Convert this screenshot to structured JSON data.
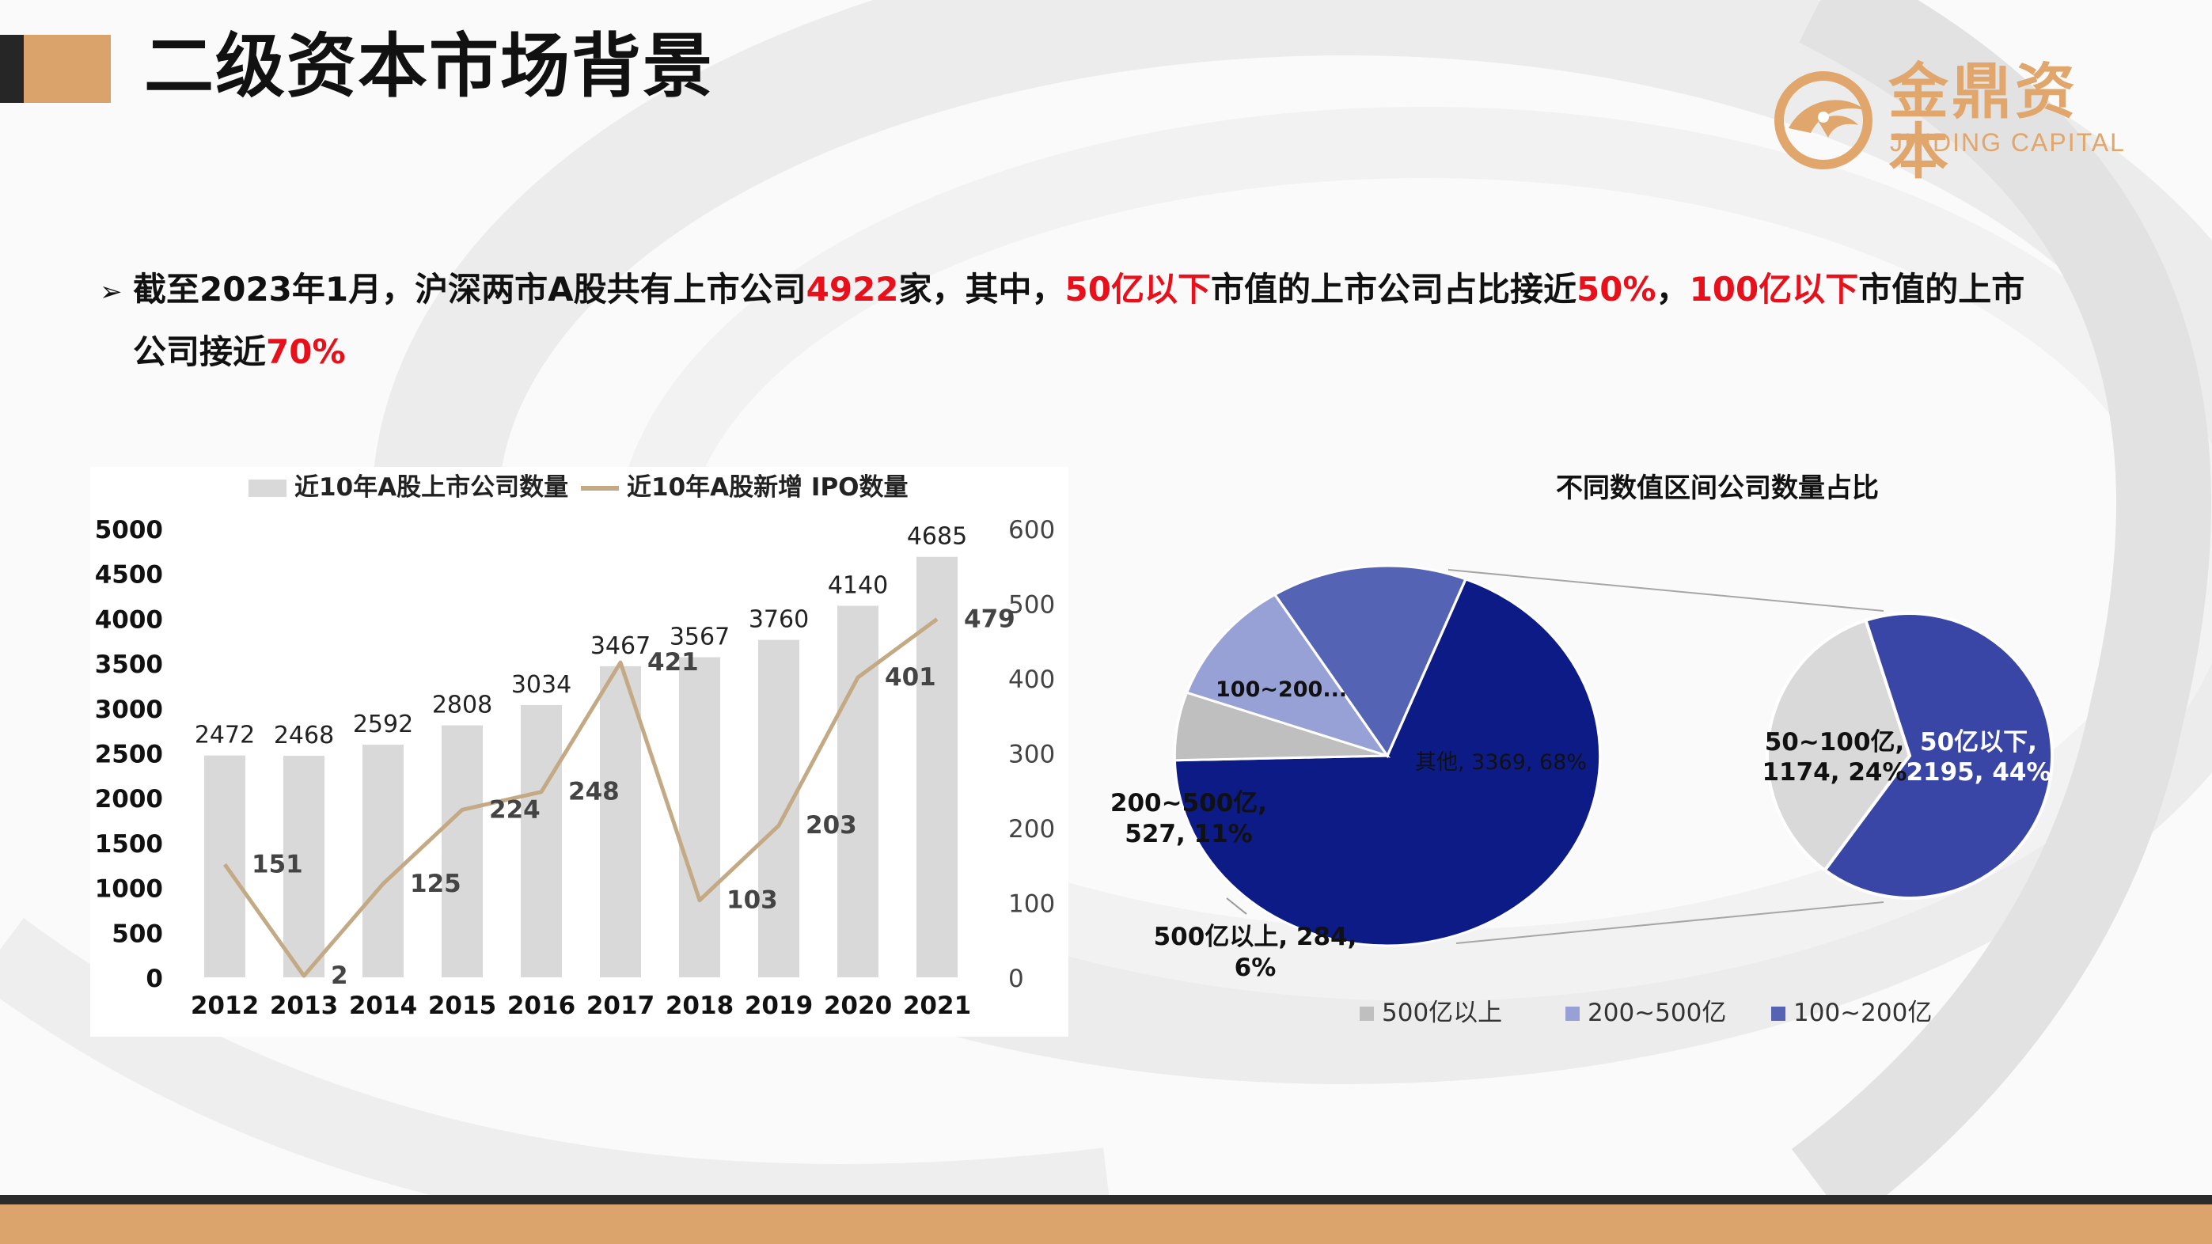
{
  "page_title": "二级资本市场背景",
  "logo": {
    "cn": "金鼎资本",
    "en": "JINDING CAPITAL"
  },
  "bullet": {
    "p1": "截至2023年1月，沪深两市A股共有上市公司",
    "n1": "4922",
    "p2": "家，其中，",
    "n2": "50亿以下",
    "p3": "市值的上市公司占比接近",
    "n3": "50%",
    "p4": "，",
    "n4": "100亿以下",
    "p5": "市值的上市",
    "p6": "公司接近",
    "n5": "70%"
  },
  "colors": {
    "accent": "#d9a36b",
    "highlight_red": "#e8101a",
    "bar_gray": "#d9d9d9",
    "ipo_line": "#c4a985",
    "pie_dark_blue": "#0d1b87",
    "pie_mid_blue": "#5563b5",
    "pie_light_blue": "#97a1d5",
    "pie_gray": "#bfbfbf",
    "pie_light_gray": "#d9d9d9",
    "pie_blue2": "#3946a6"
  },
  "chart_data": [
    {
      "type": "bar+line",
      "legend": [
        "近10年A股上市公司数量",
        "近10年A股新增 IPO数量"
      ],
      "categories": [
        "2012",
        "2013",
        "2014",
        "2015",
        "2016",
        "2017",
        "2018",
        "2019",
        "2020",
        "2021"
      ],
      "series": [
        {
          "name": "近10年A股上市公司数量",
          "type": "bar",
          "axis": "left",
          "values": [
            2472,
            2468,
            2592,
            2808,
            3034,
            3467,
            3567,
            3760,
            4140,
            4685
          ]
        },
        {
          "name": "近10年A股新增 IPO数量",
          "type": "line",
          "axis": "right",
          "values": [
            151,
            2,
            125,
            224,
            248,
            421,
            103,
            203,
            401,
            479
          ]
        }
      ],
      "y_left": {
        "min": 0,
        "max": 5000,
        "step": 500,
        "ticks": [
          "0",
          "500",
          "1000",
          "1500",
          "2000",
          "2500",
          "3000",
          "3500",
          "4000",
          "4500",
          "5000"
        ]
      },
      "y_right": {
        "min": 0,
        "max": 600,
        "step": 100,
        "ticks": [
          "0",
          "100",
          "200",
          "300",
          "400",
          "500",
          "600"
        ]
      },
      "grid": false,
      "legend_position": "top"
    },
    {
      "type": "pie-of-pie",
      "title": "不同数值区间公司数量占比",
      "main_pie": [
        {
          "label": "其他",
          "value": 3369,
          "percent": "68%",
          "text": "其他, 3369, 68%"
        },
        {
          "label": "500亿以上",
          "value": 284,
          "percent": "6%",
          "text": "500亿以上, 284, 6%"
        },
        {
          "label": "200~500亿",
          "value": 527,
          "percent": "11%",
          "text": "200~500亿, 527, 11%"
        },
        {
          "label": "100~200亿",
          "value": 730,
          "percent": "15%",
          "text": "100~200..."
        }
      ],
      "secondary_pie": [
        {
          "label": "50亿以下",
          "value": 2195,
          "percent": "44%",
          "text_l1": "50亿以下,",
          "text_l2": "2195, 44%"
        },
        {
          "label": "50~100亿",
          "value": 1174,
          "percent": "24%",
          "text_l1": "50~100亿,",
          "text_l2": "1174, 24%"
        }
      ],
      "legend": [
        "500亿以上",
        "200~500亿",
        "100~200亿"
      ],
      "legend_position": "bottom"
    }
  ]
}
